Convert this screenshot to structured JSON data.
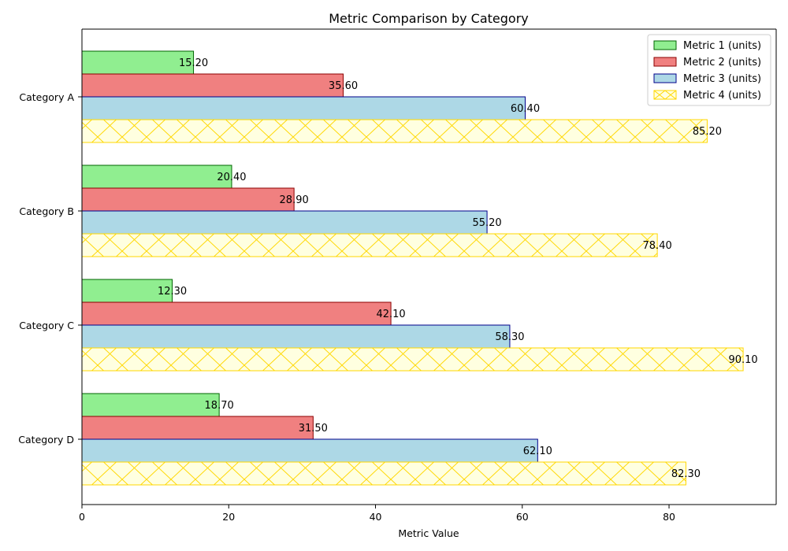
{
  "chart_data": {
    "type": "bar",
    "orientation": "horizontal",
    "title": "Metric Comparison by Category",
    "xlabel": "Metric Value",
    "ylabel": "",
    "categories": [
      "Category A",
      "Category B",
      "Category C",
      "Category D"
    ],
    "xlim": [
      0,
      94.6
    ],
    "xticks": [
      0,
      20,
      40,
      60,
      80
    ],
    "grid": false,
    "legend_position": "top-right",
    "series": [
      {
        "name": "Metric 1 (units)",
        "values": [
          15.2,
          20.4,
          12.3,
          18.7
        ],
        "labels": [
          "15.20",
          "20.40",
          "12.30",
          "18.70"
        ],
        "fill": "#90ee90",
        "edge": "#006400",
        "hatch": false
      },
      {
        "name": "Metric 2 (units)",
        "values": [
          35.6,
          28.9,
          42.1,
          31.5
        ],
        "labels": [
          "35.60",
          "28.90",
          "42.10",
          "31.50"
        ],
        "fill": "#f08080",
        "edge": "#8b0000",
        "hatch": false
      },
      {
        "name": "Metric 3 (units)",
        "values": [
          60.4,
          55.2,
          58.3,
          62.1
        ],
        "labels": [
          "60.40",
          "55.20",
          "58.30",
          "62.10"
        ],
        "fill": "#add8e6",
        "edge": "#00008b",
        "hatch": false
      },
      {
        "name": "Metric 4 (units)",
        "values": [
          85.2,
          78.4,
          90.1,
          82.3
        ],
        "labels": [
          "85.20",
          "78.40",
          "90.10",
          "82.30"
        ],
        "fill": "#ffffe0",
        "edge": "#ffd700",
        "hatch": true
      }
    ]
  }
}
